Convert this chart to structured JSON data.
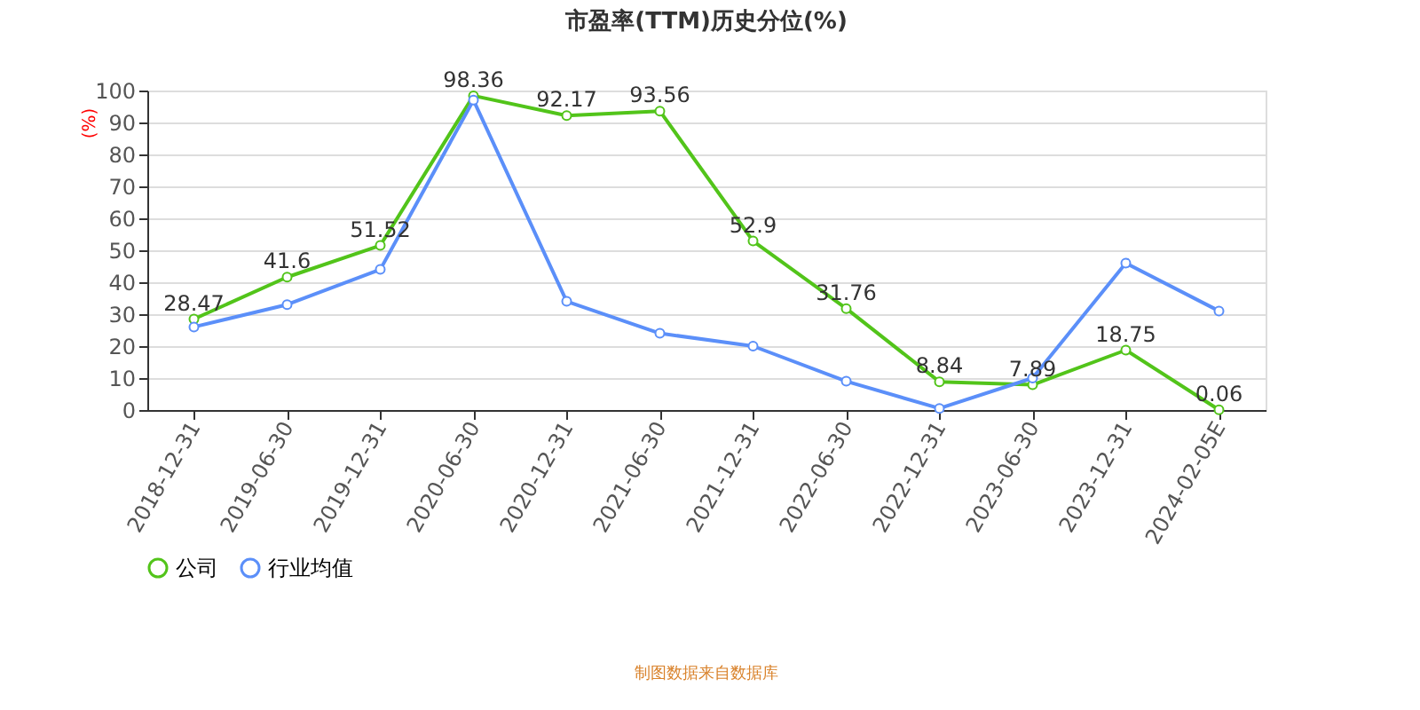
{
  "chart_data": {
    "type": "line",
    "title": "市盈率(TTM)历史分位(%)",
    "ylabel": "(%)",
    "categories": [
      "2018-12-31",
      "2019-06-30",
      "2019-12-31",
      "2020-06-30",
      "2020-12-31",
      "2021-06-30",
      "2021-12-31",
      "2022-06-30",
      "2022-12-31",
      "2023-06-30",
      "2023-12-31",
      "2024-02-05E"
    ],
    "series": [
      {
        "name": "公司",
        "color": "#52c41a",
        "values": [
          28.47,
          41.6,
          51.52,
          98.36,
          92.17,
          93.56,
          52.9,
          31.76,
          8.84,
          7.89,
          18.75,
          0.06
        ],
        "value_labels": [
          "28.47",
          "41.6",
          "51.52",
          "98.36",
          "92.17",
          "93.56",
          "52.9",
          "31.76",
          "8.84",
          "7.89",
          "18.75",
          "0.06"
        ]
      },
      {
        "name": "行业均值",
        "color": "#5b8ff9",
        "values": [
          26,
          33,
          44,
          97,
          34,
          24,
          20,
          9,
          0.5,
          10,
          46,
          31
        ]
      }
    ],
    "ylim": [
      0,
      100
    ],
    "yticks": [
      0,
      10,
      20,
      30,
      40,
      50,
      60,
      70,
      80,
      90,
      100
    ],
    "grid": "y",
    "legend": "bottom",
    "marker": "circle",
    "line_style": "solid",
    "annotations": [
      "制图数据来自数据库"
    ]
  }
}
